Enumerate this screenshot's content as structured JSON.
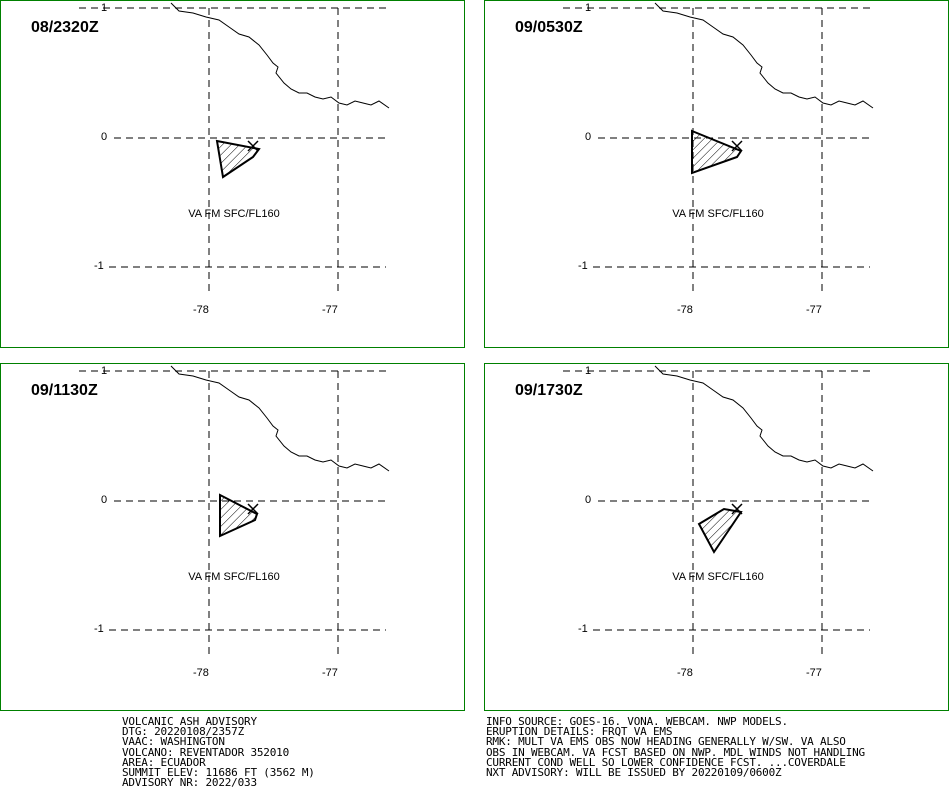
{
  "panels": [
    {
      "time": "08/2320Z",
      "level": "VA FM SFC/FL160",
      "lat_ticks": [
        "1",
        "0",
        "-1"
      ],
      "lon_ticks": [
        "-78",
        "-77"
      ]
    },
    {
      "time": "09/0530Z",
      "level": "VA FM SFC/FL160",
      "lat_ticks": [
        "1",
        "0",
        "-1"
      ],
      "lon_ticks": [
        "-78",
        "-77"
      ]
    },
    {
      "time": "09/1130Z",
      "level": "VA FM SFC/FL160",
      "lat_ticks": [
        "1",
        "0",
        "-1"
      ],
      "lon_ticks": [
        "-78",
        "-77"
      ]
    },
    {
      "time": "09/1730Z",
      "level": "VA FM SFC/FL160",
      "lat_ticks": [
        "1",
        "0",
        "-1"
      ],
      "lon_ticks": [
        "-78",
        "-77"
      ]
    }
  ],
  "advisory_left": [
    "VOLCANIC ASH ADVISORY",
    "DTG: 20220108/2357Z",
    "VAAC: WASHINGTON",
    "VOLCANO: REVENTADOR 352010",
    "AREA: ECUADOR",
    "SUMMIT ELEV: 11686 FT (3562 M)",
    "ADVISORY NR: 2022/033"
  ],
  "advisory_right": [
    "INFO SOURCE: GOES-16. VONA. WEBCAM. NWP MODELS.",
    "ERUPTION DETAILS: FRQT VA EMS",
    "RMK: MULT VA EMS OBS NOW HEADING GENERALLY W/SW. VA ALSO",
    "OBS IN WEBCAM. VA FCST BASED ON NWP. MDL WINDS NOT HANDLING",
    "CURRENT COND WELL SO LOWER CONFIDENCE FCST. ...COVERDALE",
    "NXT ADVISORY: WILL BE ISSUED BY 20220109/0600Z"
  ],
  "colors": {
    "panel_border": "#008000",
    "coastline": "#000000",
    "ash_hatch": "#000000"
  },
  "icons": {
    "volcano_marker": "x-mark"
  }
}
